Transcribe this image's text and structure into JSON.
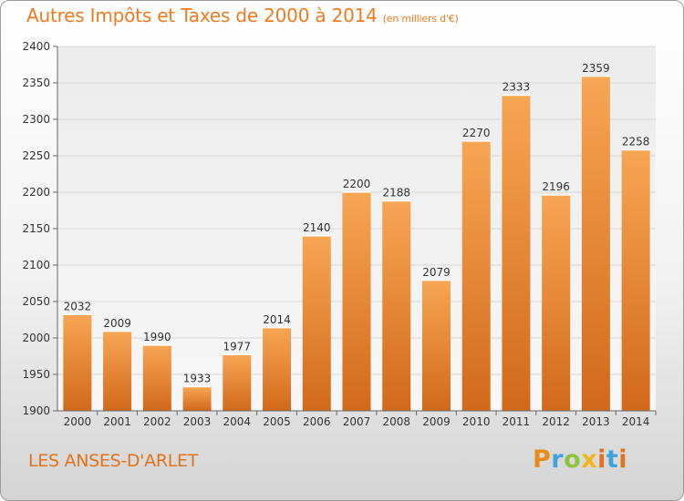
{
  "header": {
    "title": "Autres Impôts et Taxes de 2000 à 2014",
    "subtitle": "(en milliers d'€)"
  },
  "footer": {
    "commune": "LES ANSES-D'ARLET",
    "brand": [
      "P",
      "r",
      "o",
      "x",
      "i",
      "t",
      "i"
    ]
  },
  "colors": {
    "bar": "#f07f22",
    "title": "#f07a1d",
    "grid": "#d8d8d8"
  },
  "chart_data": {
    "type": "bar",
    "title": "Autres Impôts et Taxes de 2000 à 2014",
    "subtitle": "(en milliers d'€)",
    "xlabel": "",
    "ylabel": "",
    "categories": [
      "2000",
      "2001",
      "2002",
      "2003",
      "2004",
      "2005",
      "2006",
      "2007",
      "2008",
      "2009",
      "2010",
      "2011",
      "2012",
      "2013",
      "2014"
    ],
    "values": [
      2032,
      2009,
      1990,
      1933,
      1977,
      2014,
      2140,
      2200,
      2188,
      2079,
      2270,
      2333,
      2196,
      2359,
      2258
    ],
    "ylim": [
      1900,
      2400
    ],
    "yticks": [
      1900,
      1950,
      2000,
      2050,
      2100,
      2150,
      2200,
      2250,
      2300,
      2350,
      2400
    ],
    "grid": true,
    "data_labels": true
  }
}
